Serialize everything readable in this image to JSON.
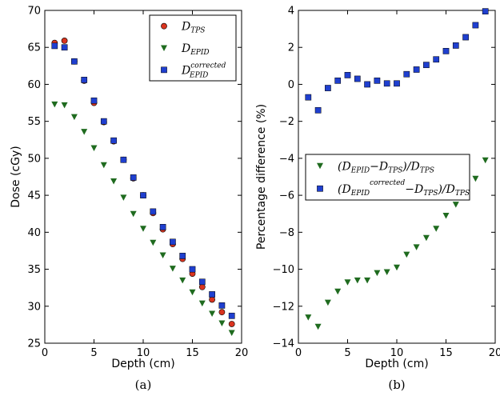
{
  "chart_data": [
    {
      "type": "scatter",
      "caption": "(a)",
      "xlabel": "Depth (cm)",
      "ylabel": "Dose (cGy)",
      "xlim": [
        0,
        20
      ],
      "ylim": [
        25,
        70
      ],
      "xticks": [
        0,
        5,
        10,
        15,
        20
      ],
      "yticks": [
        25,
        30,
        35,
        40,
        45,
        50,
        55,
        60,
        65,
        70
      ],
      "grid": false,
      "legend_position": "top-right",
      "series": [
        {
          "name": "D_TPS",
          "legend_main": "D",
          "legend_sub": "TPS",
          "legend_sup": "",
          "marker": "circle",
          "color": "#d9341f",
          "x": [
            1,
            2,
            3,
            4,
            5,
            6,
            7,
            8,
            9,
            10,
            11,
            12,
            13,
            14,
            15,
            16,
            17,
            18,
            19
          ],
          "y": [
            65.6,
            65.9,
            63.1,
            60.5,
            57.5,
            54.9,
            52.3,
            49.8,
            47.3,
            45.0,
            42.6,
            40.4,
            38.4,
            36.4,
            34.4,
            32.6,
            30.9,
            29.2,
            27.6
          ]
        },
        {
          "name": "D_EPID",
          "legend_main": "D",
          "legend_sub": "EPID",
          "legend_sup": "",
          "marker": "triangle-down",
          "color": "#1f6b1f",
          "x": [
            1,
            2,
            3,
            4,
            5,
            6,
            7,
            8,
            9,
            10,
            11,
            12,
            13,
            14,
            15,
            16,
            17,
            18,
            19
          ],
          "y": [
            57.3,
            57.2,
            55.6,
            53.6,
            51.4,
            49.1,
            46.9,
            44.7,
            42.5,
            40.5,
            38.6,
            36.9,
            35.1,
            33.5,
            31.9,
            30.4,
            29.0,
            27.7,
            26.4
          ]
        },
        {
          "name": "D_EPID^corrected",
          "legend_main": "D",
          "legend_sub": "EPID",
          "legend_sup": "corrected",
          "marker": "square",
          "color": "#1f3fcf",
          "x": [
            1,
            2,
            3,
            4,
            5,
            6,
            7,
            8,
            9,
            10,
            11,
            12,
            13,
            14,
            15,
            16,
            17,
            18,
            19
          ],
          "y": [
            65.2,
            65.0,
            63.1,
            60.6,
            57.8,
            55.0,
            52.4,
            49.8,
            47.4,
            45.0,
            42.8,
            40.7,
            38.7,
            36.8,
            35.0,
            33.3,
            31.6,
            30.1,
            28.7
          ]
        }
      ]
    },
    {
      "type": "scatter",
      "caption": "(b)",
      "xlabel": "Depth (cm)",
      "ylabel": "Percentage difference (%)",
      "xlim": [
        0,
        20
      ],
      "ylim": [
        -14,
        4
      ],
      "xticks": [
        0,
        5,
        10,
        15,
        20
      ],
      "yticks": [
        -14,
        -12,
        -10,
        -8,
        -6,
        -4,
        -2,
        0,
        2,
        4
      ],
      "grid": false,
      "legend_position": "center",
      "series": [
        {
          "name": "(D_EPID − D_TPS)/D_TPS",
          "legend_parts": [
            {
              "t": "(D",
              "s": ""
            },
            {
              "t": "EPID",
              "s": "sub"
            },
            {
              "t": "−D",
              "s": ""
            },
            {
              "t": "TPS",
              "s": "sub"
            },
            {
              "t": ")/D",
              "s": ""
            },
            {
              "t": "TPS",
              "s": "sub"
            }
          ],
          "marker": "triangle-down",
          "color": "#1f6b1f",
          "x": [
            1,
            2,
            3,
            4,
            5,
            6,
            7,
            8,
            9,
            10,
            11,
            12,
            13,
            14,
            15,
            16,
            17,
            18,
            19
          ],
          "y": [
            -12.6,
            -13.1,
            -11.8,
            -11.2,
            -10.7,
            -10.6,
            -10.6,
            -10.2,
            -10.15,
            -9.9,
            -9.2,
            -8.8,
            -8.3,
            -7.8,
            -7.1,
            -6.5,
            -5.9,
            -5.1,
            -4.1
          ]
        },
        {
          "name": "(D_EPID^corrected − D_TPS)/D_TPS",
          "legend_parts": [
            {
              "t": "(D",
              "s": ""
            },
            {
              "t": "EPID",
              "s": "sub"
            },
            {
              "t": "corrected",
              "s": "sup"
            },
            {
              "t": "−D",
              "s": ""
            },
            {
              "t": "TPS",
              "s": "sub"
            },
            {
              "t": ")/D",
              "s": ""
            },
            {
              "t": "TPS",
              "s": "sub"
            }
          ],
          "marker": "square",
          "color": "#1f3fcf",
          "x": [
            1,
            2,
            3,
            4,
            5,
            6,
            7,
            8,
            9,
            10,
            11,
            12,
            13,
            14,
            15,
            16,
            17,
            18,
            19
          ],
          "y": [
            -0.7,
            -1.4,
            -0.2,
            0.2,
            0.5,
            0.3,
            0.0,
            0.2,
            0.05,
            0.05,
            0.55,
            0.8,
            1.05,
            1.35,
            1.8,
            2.1,
            2.55,
            3.2,
            3.95
          ]
        }
      ]
    }
  ]
}
